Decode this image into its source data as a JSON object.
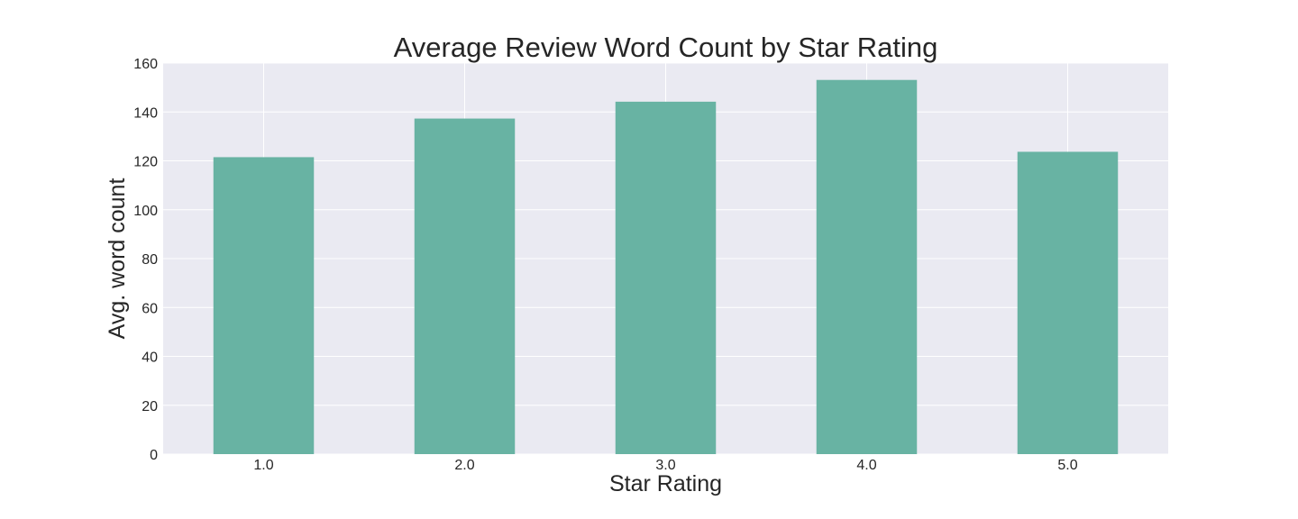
{
  "chart_data": {
    "type": "bar",
    "title": "Average Review Word Count by Star Rating",
    "xlabel": "Star Rating",
    "ylabel": "Avg. word count",
    "categories": [
      "1.0",
      "2.0",
      "3.0",
      "4.0",
      "5.0"
    ],
    "values": [
      121.5,
      137.3,
      144.2,
      153.1,
      123.7
    ],
    "ylim": [
      0,
      160
    ],
    "yticks": [
      "0",
      "20",
      "40",
      "60",
      "80",
      "100",
      "120",
      "140",
      "160"
    ],
    "grid": true,
    "legend": "none",
    "colors": {
      "bar": "#68b3a3",
      "plot_background": "#eaeaf2",
      "grid": "#ffffff"
    }
  }
}
